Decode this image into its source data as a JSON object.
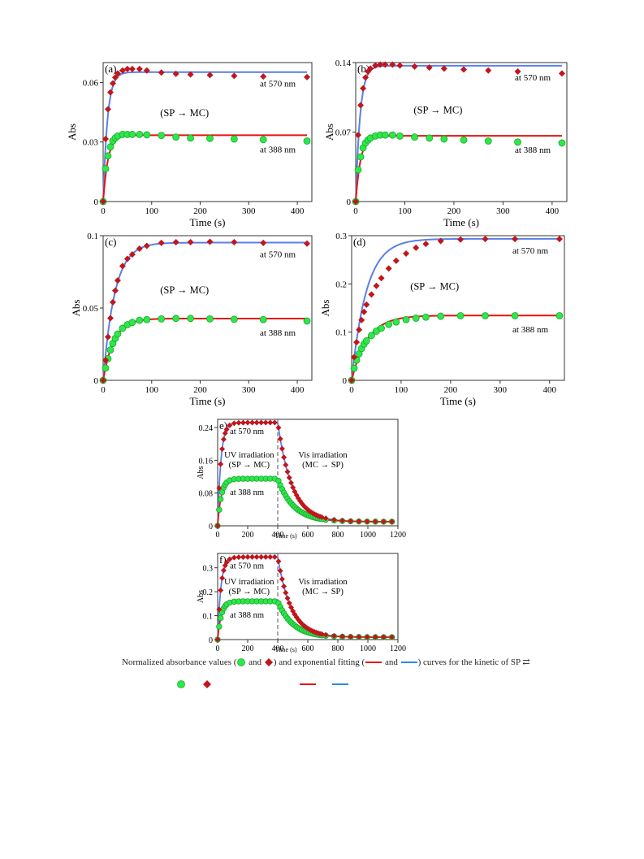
{
  "chart_data": [
    {
      "id": "a",
      "type": "scatter",
      "panel_label": "(a)",
      "xlabel": "Time (s)",
      "ylabel": "Abs",
      "xlim": [
        0,
        430
      ],
      "ylim": [
        0,
        0.07
      ],
      "xticks": [
        0,
        100,
        200,
        300,
        400
      ],
      "yticks": [
        0,
        0.03,
        0.06
      ],
      "ytick_labels": [
        "0",
        "0.03",
        "0.06"
      ],
      "annotations": {
        "reaction": "(SP → MC)",
        "upper": "at 570 nm",
        "lower": "at 388 nm"
      },
      "series": [
        {
          "name": "at 570 nm",
          "marker": "diamond",
          "color": "#c0161c",
          "x": [
            0,
            5,
            10,
            15,
            20,
            25,
            30,
            40,
            50,
            60,
            75,
            90,
            120,
            150,
            180,
            220,
            270,
            330,
            420
          ],
          "y": [
            0,
            0.0315,
            0.0465,
            0.055,
            0.0595,
            0.0625,
            0.0645,
            0.066,
            0.0668,
            0.0668,
            0.0668,
            0.066,
            0.065,
            0.0643,
            0.064,
            0.0637,
            0.0633,
            0.063,
            0.0627
          ],
          "fit": {
            "A": 0.0652,
            "tau": 9
          }
        },
        {
          "name": "at 388 nm",
          "marker": "circle",
          "color": "#2ee84a",
          "x": [
            0,
            5,
            10,
            15,
            20,
            25,
            30,
            40,
            50,
            60,
            75,
            90,
            120,
            150,
            180,
            220,
            270,
            330,
            420
          ],
          "y": [
            0,
            0.0165,
            0.023,
            0.0275,
            0.0305,
            0.032,
            0.033,
            0.0338,
            0.0338,
            0.0338,
            0.0338,
            0.0336,
            0.0333,
            0.0325,
            0.032,
            0.0318,
            0.0315,
            0.0312,
            0.0305
          ],
          "fit": {
            "A": 0.0334,
            "tau": 10
          }
        }
      ]
    },
    {
      "id": "b",
      "type": "scatter",
      "panel_label": "(b)",
      "xlabel": "Time (s)",
      "ylabel": "Abs",
      "xlim": [
        0,
        430
      ],
      "ylim": [
        0,
        0.14
      ],
      "xticks": [
        0,
        100,
        200,
        300,
        400
      ],
      "yticks": [
        0,
        0.07,
        0.14
      ],
      "ytick_labels": [
        "0",
        "0.07",
        "0.14"
      ],
      "annotations": {
        "reaction": "(SP → MC)",
        "upper": "at 570 nm",
        "lower": "at 388 nm"
      },
      "series": [
        {
          "name": "at 570 nm",
          "marker": "diamond",
          "color": "#c0161c",
          "x": [
            0,
            5,
            10,
            15,
            20,
            25,
            30,
            40,
            50,
            60,
            75,
            90,
            120,
            150,
            180,
            220,
            270,
            330,
            420
          ],
          "y": [
            0,
            0.067,
            0.097,
            0.114,
            0.125,
            0.131,
            0.134,
            0.137,
            0.138,
            0.138,
            0.138,
            0.137,
            0.136,
            0.135,
            0.134,
            0.133,
            0.132,
            0.131,
            0.129
          ],
          "fit": {
            "A": 0.1368,
            "tau": 9
          }
        },
        {
          "name": "at 388 nm",
          "marker": "circle",
          "color": "#2ee84a",
          "x": [
            0,
            5,
            10,
            15,
            20,
            25,
            30,
            40,
            50,
            60,
            75,
            90,
            120,
            150,
            180,
            220,
            270,
            330,
            420
          ],
          "y": [
            0,
            0.032,
            0.045,
            0.054,
            0.059,
            0.062,
            0.064,
            0.066,
            0.067,
            0.067,
            0.067,
            0.066,
            0.065,
            0.064,
            0.063,
            0.062,
            0.061,
            0.06,
            0.059
          ],
          "fit": {
            "A": 0.0662,
            "tau": 10
          }
        }
      ]
    },
    {
      "id": "c",
      "type": "scatter",
      "panel_label": "(c)",
      "xlabel": "Time (s)",
      "ylabel": "Abs",
      "xlim": [
        0,
        430
      ],
      "ylim": [
        0,
        0.1
      ],
      "xticks": [
        0,
        100,
        200,
        300,
        400
      ],
      "yticks": [
        0,
        0.05,
        0.1
      ],
      "ytick_labels": [
        "0",
        "0.05",
        "0.1"
      ],
      "annotations": {
        "reaction": "(SP → MC)",
        "upper": "at 570 nm",
        "lower": "at 388 nm"
      },
      "series": [
        {
          "name": "at 570 nm",
          "marker": "diamond",
          "color": "#c0161c",
          "x": [
            0,
            5,
            10,
            15,
            20,
            25,
            30,
            40,
            50,
            60,
            75,
            90,
            120,
            150,
            180,
            220,
            270,
            330,
            420
          ],
          "y": [
            0,
            0.014,
            0.03,
            0.043,
            0.054,
            0.062,
            0.069,
            0.079,
            0.084,
            0.087,
            0.091,
            0.093,
            0.095,
            0.0955,
            0.0955,
            0.0958,
            0.0955,
            0.095,
            0.0945
          ],
          "fit": {
            "A": 0.0952,
            "tau": 24
          }
        },
        {
          "name": "at 388 nm",
          "marker": "circle",
          "color": "#2ee84a",
          "x": [
            0,
            5,
            10,
            15,
            20,
            25,
            30,
            40,
            50,
            60,
            75,
            90,
            120,
            150,
            180,
            220,
            270,
            330,
            420
          ],
          "y": [
            0,
            0.0085,
            0.015,
            0.021,
            0.0255,
            0.029,
            0.032,
            0.036,
            0.0385,
            0.04,
            0.0415,
            0.042,
            0.0425,
            0.0428,
            0.0428,
            0.0425,
            0.0422,
            0.042,
            0.041
          ],
          "fit": {
            "A": 0.0427,
            "tau": 22
          }
        }
      ]
    },
    {
      "id": "d",
      "type": "scatter",
      "panel_label": "(d)",
      "xlabel": "Time (s)",
      "ylabel": "Abs",
      "xlim": [
        0,
        430
      ],
      "ylim": [
        0,
        0.3
      ],
      "xticks": [
        0,
        100,
        200,
        300,
        400
      ],
      "yticks": [
        0,
        0.1,
        0.2,
        0.3
      ],
      "ytick_labels": [
        "0",
        "0.1",
        "0.2",
        "0.3"
      ],
      "annotations": {
        "reaction": "(SP → MC)",
        "upper": "at 570 nm",
        "lower": "at 388 nm"
      },
      "series": [
        {
          "name": "at 570 nm",
          "marker": "diamond",
          "color": "#c0161c",
          "x": [
            0,
            5,
            10,
            15,
            20,
            25,
            30,
            40,
            50,
            60,
            75,
            90,
            110,
            130,
            150,
            180,
            220,
            270,
            330,
            420
          ],
          "y": [
            0,
            0.048,
            0.079,
            0.105,
            0.125,
            0.142,
            0.157,
            0.178,
            0.196,
            0.212,
            0.232,
            0.248,
            0.263,
            0.275,
            0.283,
            0.289,
            0.292,
            0.293,
            0.293,
            0.293
          ],
          "fit": {
            "A": 0.2935,
            "tau": 30
          }
        },
        {
          "name": "at 388 nm",
          "marker": "circle",
          "color": "#2ee84a",
          "x": [
            0,
            5,
            10,
            15,
            20,
            25,
            30,
            40,
            50,
            60,
            75,
            90,
            110,
            130,
            150,
            180,
            220,
            270,
            330,
            420
          ],
          "y": [
            0,
            0.025,
            0.042,
            0.055,
            0.066,
            0.075,
            0.082,
            0.093,
            0.102,
            0.108,
            0.116,
            0.121,
            0.126,
            0.129,
            0.131,
            0.133,
            0.134,
            0.134,
            0.134,
            0.134
          ],
          "fit": {
            "A": 0.1345,
            "tau": 32
          }
        }
      ]
    },
    {
      "id": "e",
      "type": "scatter",
      "panel_label": "e)",
      "xlabel": "Time (s)",
      "ylabel": "Abs",
      "xlim": [
        0,
        1200
      ],
      "ylim": [
        0,
        0.26
      ],
      "xticks": [
        0,
        200,
        400,
        600,
        800,
        1000,
        1200
      ],
      "yticks": [
        0,
        0.08,
        0.16,
        0.24
      ],
      "ytick_labels": [
        "0",
        "0.08",
        "0.16",
        "0.24"
      ],
      "switch_time": 400,
      "annotations": {
        "uv": "UV irradiation",
        "uv_reaction": "(SP → MC)",
        "vis": "Vis irradiation",
        "vis_reaction": "(MC → SP)",
        "upper": "at 570 nm",
        "lower": "at 388 nm"
      },
      "series": [
        {
          "name": "at 570 nm",
          "marker": "diamond",
          "color": "#c0161c",
          "rise": {
            "A": 0.252,
            "tau": 22
          },
          "decay": {
            "A": 0.242,
            "tau": 95,
            "base": 0.01
          }
        },
        {
          "name": "at 388 nm",
          "marker": "circle",
          "color": "#2ee84a",
          "rise": {
            "A": 0.115,
            "tau": 24
          },
          "decay": {
            "A": 0.105,
            "tau": 105,
            "base": 0.01
          }
        }
      ]
    },
    {
      "id": "f",
      "type": "scatter",
      "panel_label": "f)",
      "xlabel": "Time (s)",
      "ylabel": "Abs",
      "xlim": [
        0,
        1200
      ],
      "ylim": [
        0,
        0.36
      ],
      "xticks": [
        0,
        200,
        400,
        600,
        800,
        1000,
        1200
      ],
      "yticks": [
        0,
        0.1,
        0.2,
        0.3
      ],
      "ytick_labels": [
        "0",
        "0.1",
        "0.2",
        "0.3"
      ],
      "switch_time": 400,
      "annotations": {
        "uv": "UV irradiation",
        "uv_reaction": "(SP → MC)",
        "vis": "Vis irradiation",
        "vis_reaction": "(MC → SP)",
        "upper": "at 570 nm",
        "lower": "at 388 nm"
      },
      "series": [
        {
          "name": "at 570 nm",
          "marker": "diamond",
          "color": "#c0161c",
          "rise": {
            "A": 0.345,
            "tau": 22
          },
          "decay": {
            "A": 0.335,
            "tau": 90,
            "base": 0.01
          }
        },
        {
          "name": "at 388 nm",
          "marker": "circle",
          "color": "#2ee84a",
          "rise": {
            "A": 0.16,
            "tau": 24
          },
          "decay": {
            "A": 0.15,
            "tau": 100,
            "base": 0.01
          }
        }
      ]
    }
  ],
  "colors": {
    "fit_red": "#e8120e",
    "fit_blue": "#5a7fe8",
    "diamond": "#c0161c",
    "circle": "#2ee84a",
    "axis": "#333333"
  },
  "caption": {
    "part1": "Normalized absorbance values (",
    "part2": " and ",
    "part3": ") and exponential fitting (",
    "part4": " and ",
    "part5": ") curves for the kinetic of SP ⇄"
  }
}
